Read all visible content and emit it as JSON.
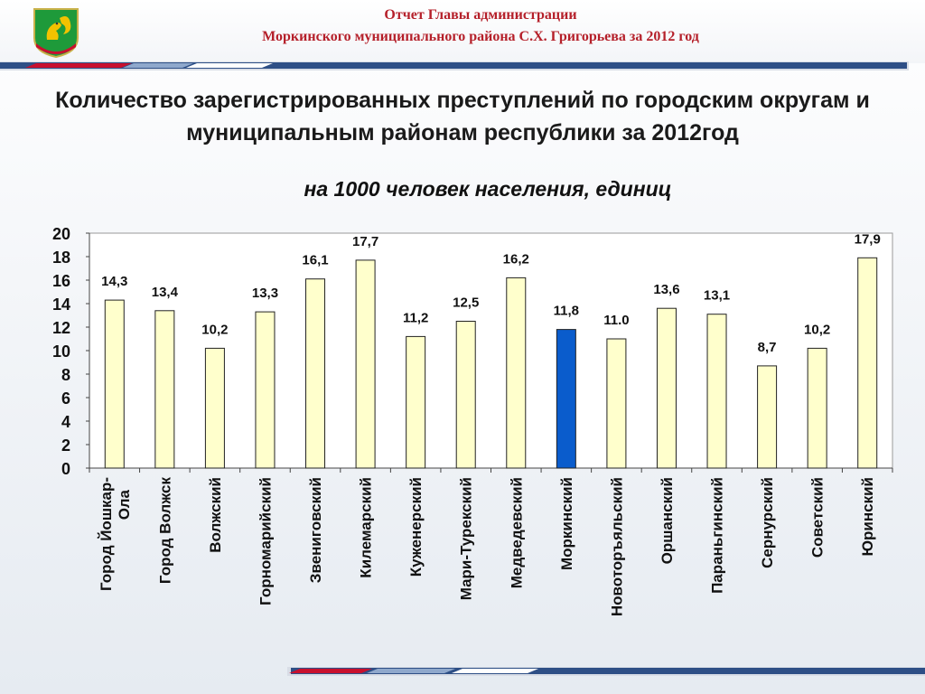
{
  "header": {
    "line1": "Отчет  Главы администрации",
    "line2": "Моркинского муниципального района С.Х. Григорьева за 2012 год",
    "logo_icon": "coat-of-arms-squirrel-icon",
    "accent_color": "#b5202a",
    "stripe_color": "#2e4f86"
  },
  "chart_data": {
    "type": "bar",
    "title": "Количество зарегистрированных преступлений по городским округам и муниципальным районам республики за 2012год",
    "subtitle": "на 1000 человек населения, единиц",
    "categories": [
      "Город Йошкар-Ола",
      "Город Волжск",
      "Волжский",
      "Горномарийский",
      "Звениговский",
      "Килемарский",
      "Куженерский",
      "Мари-Турекский",
      "Медведевский",
      "Моркинский",
      "Новоторъяльский",
      "Оршанский",
      "Параньгинский",
      "Сернурский",
      "Советский",
      "Юринский"
    ],
    "values": [
      14.3,
      13.4,
      10.2,
      13.3,
      16.1,
      17.7,
      11.2,
      12.5,
      16.2,
      11.8,
      11.0,
      13.6,
      13.1,
      8.7,
      10.2,
      17.9
    ],
    "data_labels": [
      "14,3",
      "13,4",
      "10,2",
      "13,3",
      "16,1",
      "17,7",
      "11,2",
      "12,5",
      "16,2",
      "11,8",
      "11.0",
      "13,6",
      "13,1",
      "8,7",
      "10,2",
      "17,9"
    ],
    "highlight_index": 9,
    "ylim": [
      0,
      20
    ],
    "yticks": [
      "0",
      "2",
      "4",
      "6",
      "8",
      "10",
      "12",
      "14",
      "16",
      "18",
      "20"
    ],
    "grid": false,
    "legend": "none",
    "bar_color": "#ffffcc",
    "highlight_color": "#0a5ccc",
    "xlabel": "",
    "ylabel": ""
  }
}
